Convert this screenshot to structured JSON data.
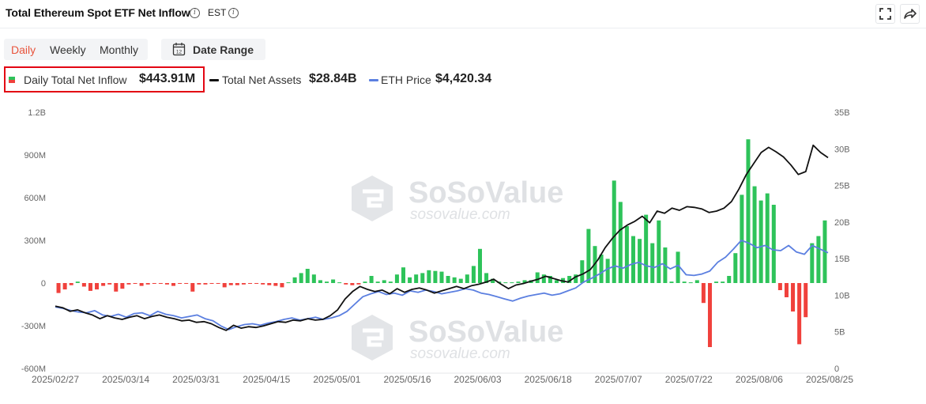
{
  "header": {
    "title": "Total Ethereum Spot ETF Net Inflow",
    "timezone": "EST",
    "info_icon": "info-icon",
    "expand_icon": "fullscreen-icon",
    "share_icon": "share-icon"
  },
  "controls": {
    "tabs": [
      "Daily",
      "Weekly",
      "Monthly"
    ],
    "active_tab": "Daily",
    "date_range_label": "Date Range",
    "calendar_day": "12"
  },
  "legend": {
    "inflow": {
      "name": "Daily Total Net Inflow",
      "value": "$443.91M",
      "color_pos": "#2ec35a",
      "color_neg": "#f0413c"
    },
    "assets": {
      "name": "Total Net Assets",
      "value": "$28.84B",
      "color": "#111111"
    },
    "price": {
      "name": "ETH Price",
      "value": "$4,420.34",
      "color": "#5b7fe0"
    }
  },
  "watermark": {
    "brand": "SoSoValue",
    "domain": "sosovalue.com"
  },
  "colors": {
    "accent": "#e8543c",
    "highlight": "#e30613",
    "positive": "#2ec35a",
    "negative": "#f0413c",
    "assets_line": "#111111",
    "price_line": "#5b7fe0"
  },
  "chart_data": {
    "type": "bar",
    "left_axis": {
      "ticks": [
        "1.2B",
        "900M",
        "600M",
        "300M",
        "0",
        "-300M",
        "-600M"
      ],
      "ylim": [
        -600,
        1200
      ],
      "unit": "M"
    },
    "right_axis": {
      "ticks": [
        "35B",
        "30B",
        "25B",
        "20B",
        "15B",
        "10B",
        "5B",
        "0"
      ],
      "ylim": [
        0,
        35
      ],
      "unit": "B"
    },
    "x_ticks": [
      "2025/02/27",
      "2025/03/14",
      "2025/03/31",
      "2025/04/15",
      "2025/05/01",
      "2025/05/16",
      "2025/06/03",
      "2025/06/18",
      "2025/07/07",
      "2025/07/22",
      "2025/08/06",
      "2025/08/25"
    ],
    "series": [
      {
        "name": "Daily Total Net Inflow",
        "type": "bar",
        "axis": "left",
        "unit": "M",
        "values": [
          -70,
          -45,
          -15,
          10,
          -25,
          -55,
          -45,
          -20,
          -10,
          -60,
          -40,
          -10,
          -5,
          -20,
          -10,
          -5,
          -5,
          -10,
          -20,
          -5,
          -5,
          -60,
          -10,
          -10,
          -5,
          -5,
          -30,
          -15,
          -15,
          -10,
          -5,
          -5,
          -10,
          -15,
          -20,
          -30,
          5,
          40,
          70,
          100,
          60,
          20,
          10,
          25,
          5,
          -10,
          -15,
          -10,
          10,
          50,
          10,
          20,
          10,
          60,
          110,
          40,
          60,
          70,
          90,
          85,
          80,
          50,
          40,
          30,
          60,
          120,
          240,
          70,
          30,
          10,
          5,
          5,
          10,
          20,
          20,
          75,
          60,
          50,
          20,
          35,
          50,
          60,
          160,
          380,
          260,
          200,
          170,
          720,
          570,
          400,
          330,
          310,
          480,
          280,
          440,
          250,
          10,
          220,
          10,
          5,
          20,
          -140,
          -450,
          10,
          10,
          50,
          210,
          620,
          1010,
          680,
          580,
          630,
          550,
          -50,
          -100,
          -200,
          -430,
          -240,
          280,
          330,
          440
        ]
      },
      {
        "name": "Total Net Assets",
        "type": "line",
        "axis": "right",
        "unit": "B",
        "values": [
          8.5,
          8.3,
          7.8,
          8.0,
          7.6,
          7.3,
          6.8,
          7.2,
          6.9,
          6.7,
          7.0,
          7.2,
          6.8,
          7.1,
          7.3,
          7.0,
          6.8,
          6.5,
          6.6,
          6.3,
          6.4,
          6.1,
          5.6,
          5.2,
          5.9,
          5.5,
          5.7,
          5.6,
          5.8,
          6.1,
          6.4,
          6.3,
          6.6,
          6.5,
          6.8,
          6.6,
          6.7,
          7.2,
          8.0,
          9.5,
          10.5,
          11.2,
          10.8,
          10.5,
          10.7,
          10.2,
          10.9,
          10.4,
          10.8,
          11.0,
          10.7,
          10.3,
          10.6,
          10.9,
          11.2,
          10.9,
          11.3,
          11.5,
          11.8,
          12.2,
          11.5,
          10.9,
          11.4,
          11.6,
          11.9,
          12.2,
          12.6,
          12.3,
          12.0,
          11.8,
          12.5,
          12.9,
          13.5,
          14.8,
          16.5,
          17.8,
          18.9,
          19.6,
          20.1,
          20.8,
          19.9,
          21.5,
          21.2,
          21.9,
          21.6,
          22.1,
          22.0,
          21.8,
          21.3,
          21.5,
          21.9,
          22.8,
          24.5,
          26.5,
          28.0,
          29.5,
          30.2,
          29.6,
          28.9,
          27.8,
          26.5,
          26.9,
          30.5,
          29.5,
          28.8
        ]
      },
      {
        "name": "ETH Price",
        "type": "line",
        "axis": "right",
        "unit": "B",
        "values": [
          8.4,
          8.2,
          7.9,
          7.7,
          7.6,
          7.9,
          7.3,
          7.1,
          7.4,
          7.0,
          7.5,
          7.6,
          7.2,
          7.8,
          7.4,
          7.2,
          6.9,
          7.1,
          7.3,
          6.8,
          6.5,
          5.8,
          5.3,
          5.7,
          6.0,
          6.1,
          5.9,
          6.2,
          6.4,
          6.7,
          6.9,
          6.6,
          6.8,
          7.0,
          6.7,
          6.9,
          7.2,
          7.8,
          8.8,
          9.8,
          10.2,
          10.5,
          10.1,
          10.3,
          10.0,
          10.6,
          10.4,
          10.7,
          10.5,
          10.2,
          10.4,
          10.6,
          10.9,
          10.7,
          10.3,
          10.1,
          9.8,
          9.5,
          9.2,
          9.6,
          9.9,
          10.1,
          10.3,
          10.0,
          10.2,
          10.6,
          11.0,
          11.8,
          12.3,
          12.9,
          13.6,
          14.0,
          13.7,
          14.2,
          14.5,
          14.0,
          13.8,
          14.3,
          13.6,
          14.1,
          12.8,
          12.7,
          12.9,
          13.3,
          14.5,
          15.2,
          16.3,
          17.5,
          17.1,
          16.5,
          16.8,
          16.2,
          16.1,
          16.8,
          15.9,
          15.6,
          16.8,
          16.3,
          15.8
        ]
      }
    ],
    "grid": false,
    "legend_position": "top-left"
  }
}
